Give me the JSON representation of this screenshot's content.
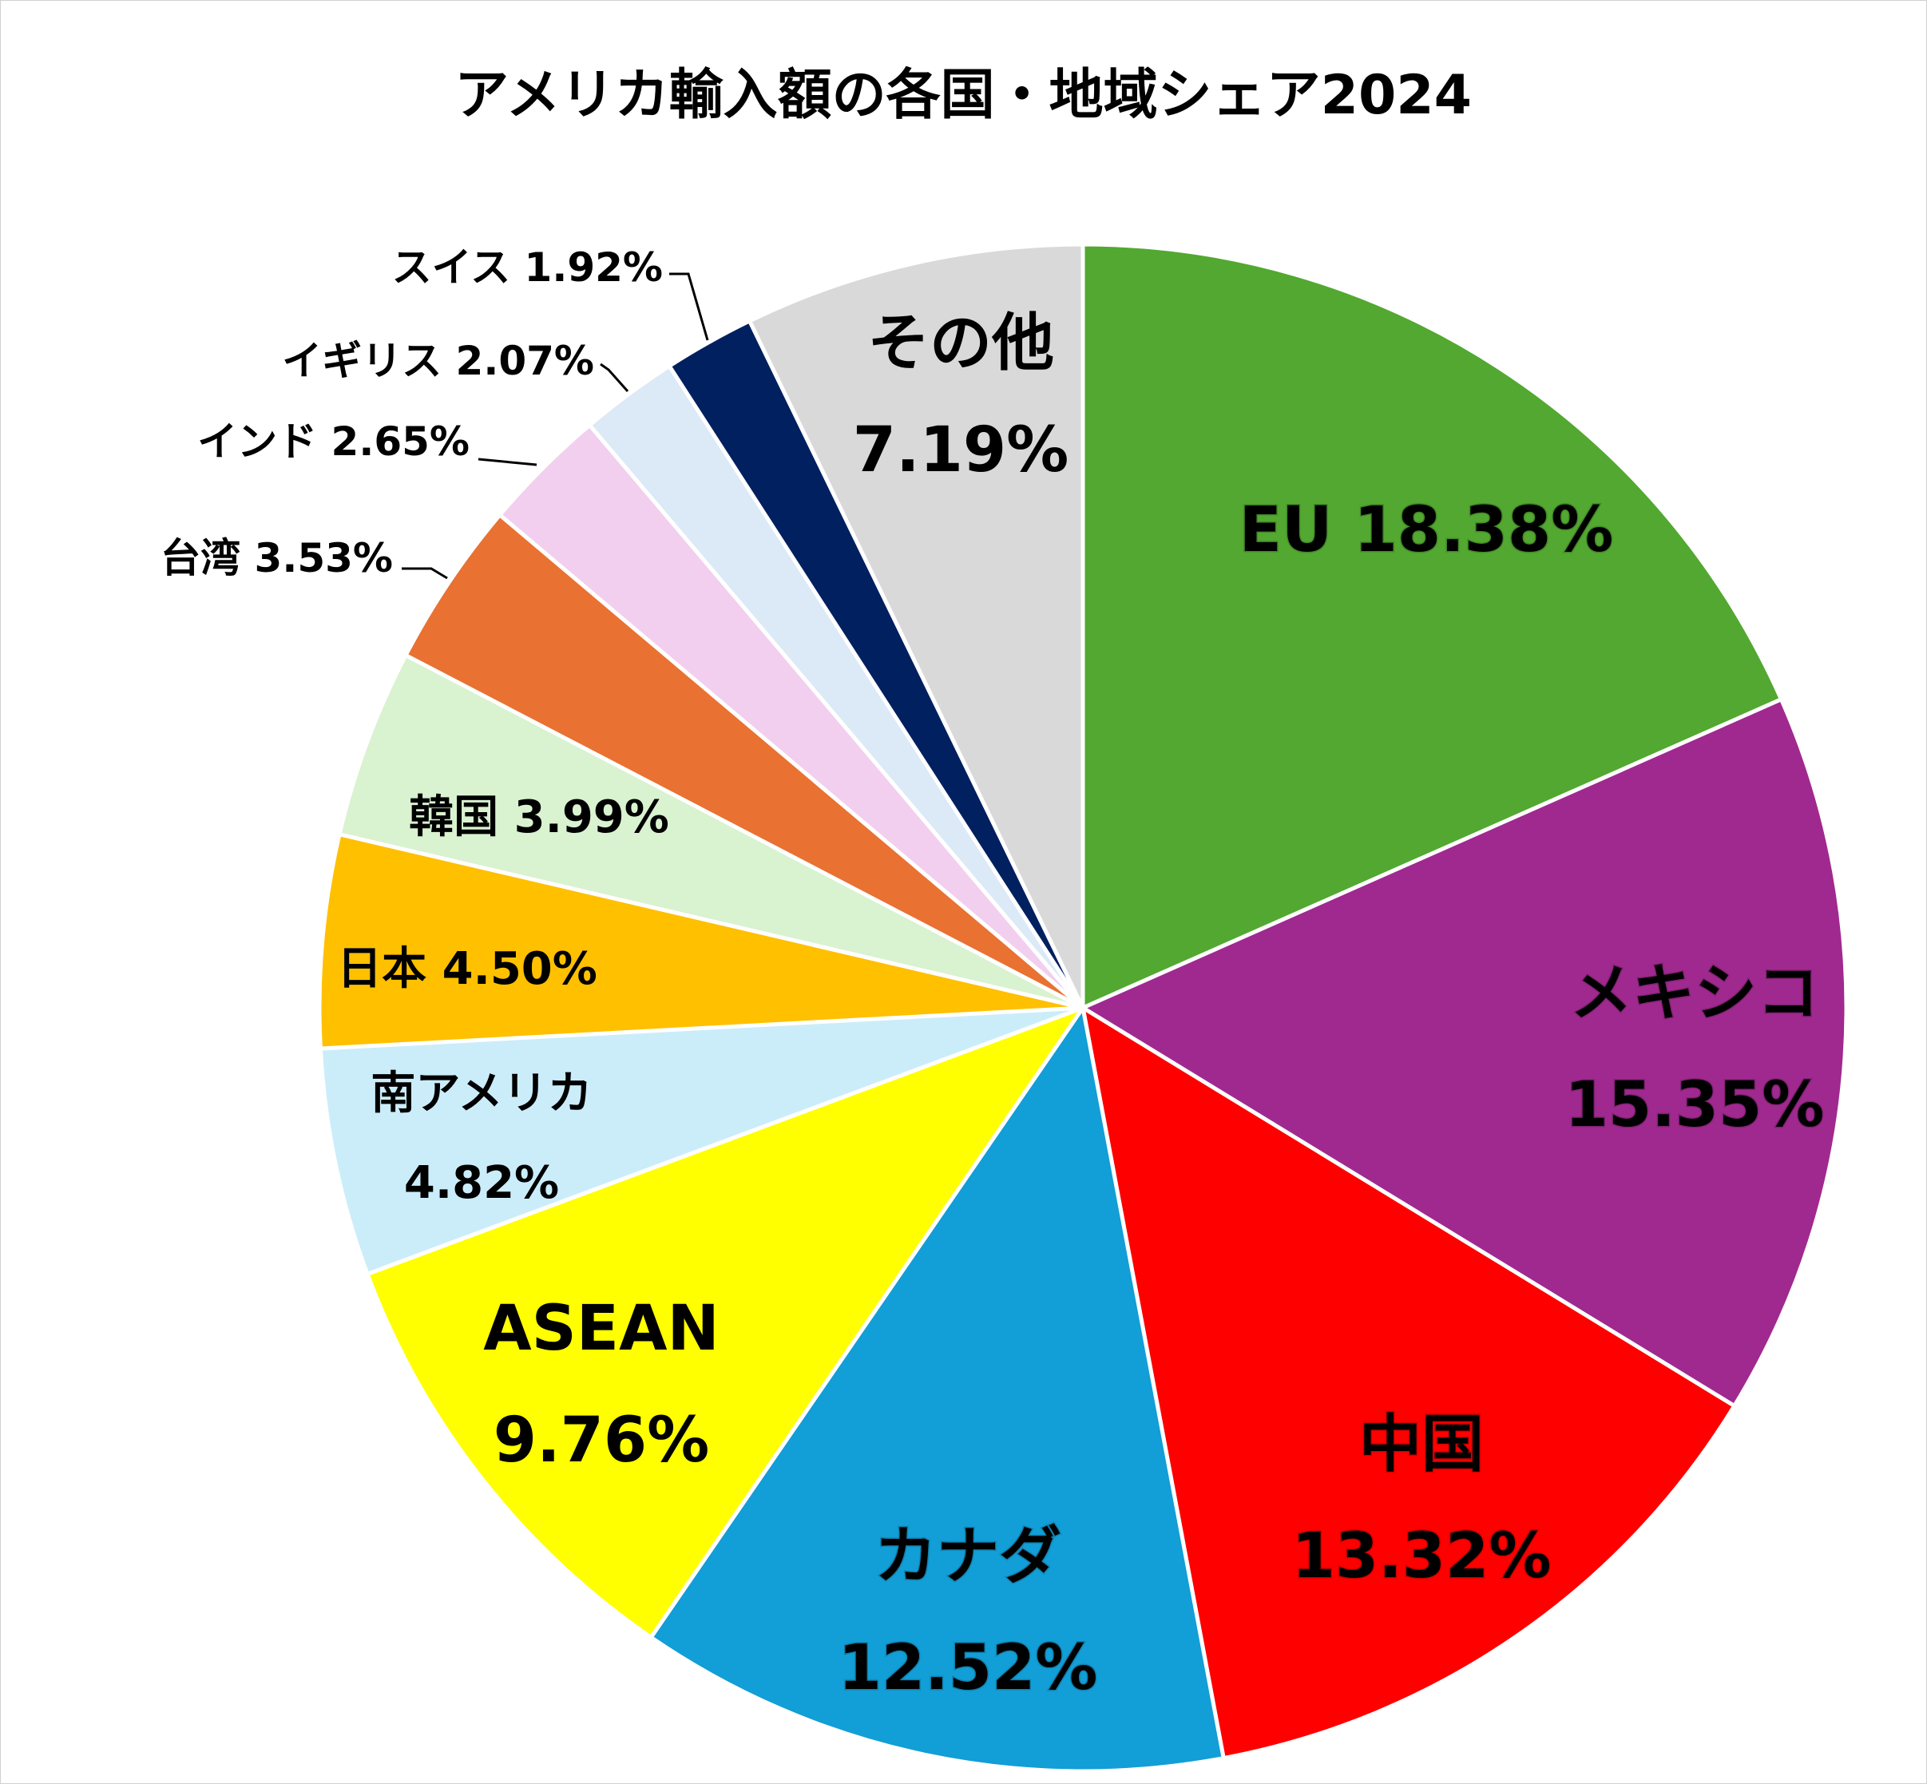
{
  "chart_data": {
    "type": "pie",
    "title": "アメリカ輸入額の各国・地域シェア2024",
    "slices": [
      {
        "name": "EU",
        "value": 18.38,
        "pct_label": "18.38%",
        "color": "#52A830"
      },
      {
        "name": "メキシコ",
        "value": 15.35,
        "pct_label": "15.35%",
        "color": "#A0298F"
      },
      {
        "name": "中国",
        "value": 13.32,
        "pct_label": "13.32%",
        "color": "#FF0000"
      },
      {
        "name": "カナダ",
        "value": 12.52,
        "pct_label": "12.52%",
        "color": "#129ED6"
      },
      {
        "name": "ASEAN",
        "value": 9.76,
        "pct_label": "9.76%",
        "color": "#FFFF00"
      },
      {
        "name": "南アメリカ",
        "value": 4.82,
        "pct_label": "4.82%",
        "color": "#CBEDFA"
      },
      {
        "name": "日本",
        "value": 4.5,
        "pct_label": "4.50%",
        "color": "#FFC000"
      },
      {
        "name": "韓国",
        "value": 3.99,
        "pct_label": "3.99%",
        "color": "#D9F2D0"
      },
      {
        "name": "台湾",
        "value": 3.53,
        "pct_label": "3.53%",
        "color": "#E97132"
      },
      {
        "name": "インド",
        "value": 2.65,
        "pct_label": "2.65%",
        "color": "#F2CFEE"
      },
      {
        "name": "イギリス",
        "value": 2.07,
        "pct_label": "2.07%",
        "color": "#DCE9F7"
      },
      {
        "name": "スイス",
        "value": 1.92,
        "pct_label": "1.92%",
        "color": "#002060"
      },
      {
        "name": "その他",
        "value": 7.19,
        "pct_label": "7.19%",
        "color": "#D9D9D9"
      }
    ]
  }
}
